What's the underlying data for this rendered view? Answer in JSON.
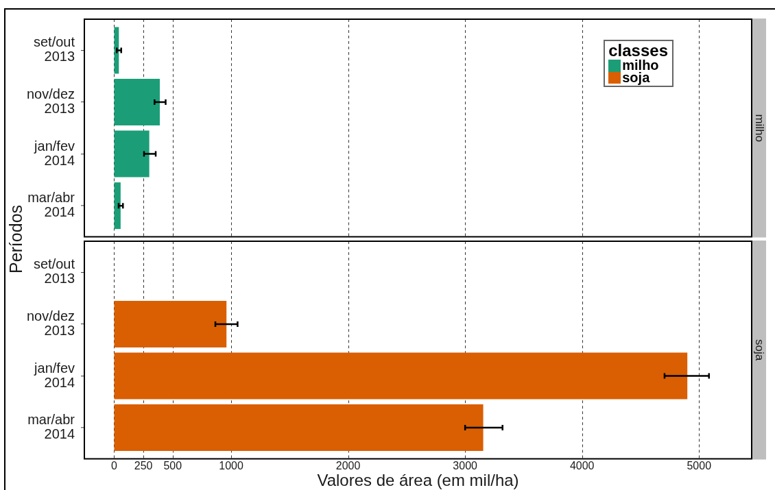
{
  "chart_data": [
    {
      "type": "bar",
      "orientation": "horizontal",
      "title": "milho",
      "categories": [
        "set/out\n2013",
        "nov/dez\n2013",
        "jan/fev\n2014",
        "mar/abr\n2014"
      ],
      "series": [
        {
          "name": "milho",
          "color": "#1b9e77",
          "values": [
            40,
            390,
            300,
            55
          ],
          "errors": [
            [
              22,
              60
            ],
            [
              345,
              440
            ],
            [
              255,
              355
            ],
            [
              38,
              75
            ]
          ]
        }
      ],
      "xlim": [
        -255,
        5450
      ],
      "xticks": [
        0,
        250,
        500,
        1000,
        2000,
        3000,
        4000,
        5000
      ],
      "grid": "x",
      "tick_labels": "y",
      "legend": "top right",
      "legend_title": "classes"
    },
    {
      "type": "bar",
      "orientation": "horizontal",
      "title": "soja",
      "categories": [
        "set/out\n2013",
        "nov/dez\n2013",
        "jan/fev\n2014",
        "mar/abr\n2014"
      ],
      "series": [
        {
          "name": "soja",
          "color": "#d95f02",
          "values": [
            null,
            960,
            4900,
            3155
          ],
          "errors": [
            null,
            [
              865,
              1055
            ],
            [
              4705,
              5085
            ],
            [
              3000,
              3320
            ]
          ]
        }
      ],
      "xlim": [
        -255,
        5450
      ],
      "xticks": [
        0,
        250,
        500,
        1000,
        2000,
        3000,
        4000,
        5000
      ],
      "grid": "x",
      "xlabel": "Valores de área (em mil/ha)",
      "ylabel": "Períodos"
    }
  ]
}
